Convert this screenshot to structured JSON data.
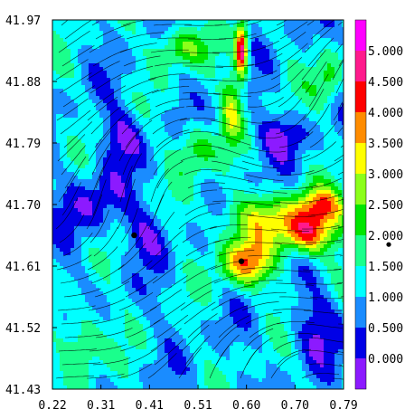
{
  "chart_data": {
    "type": "heatmap",
    "title": "",
    "xlabel": "",
    "ylabel": "",
    "overlay": "streamlines",
    "x_ticks": [
      "0.22",
      "0.31",
      "0.41",
      "0.51",
      "0.60",
      "0.70",
      "0.79"
    ],
    "y_ticks": [
      "41.43",
      "41.52",
      "41.61",
      "41.70",
      "41.79",
      "41.88",
      "41.97"
    ],
    "xlim": [
      0.22,
      0.79
    ],
    "ylim": [
      41.43,
      41.97
    ],
    "colorbar": {
      "levels": [
        {
          "label": "0.000",
          "value": 0.0,
          "color": "#8c1aff"
        },
        {
          "label": "0.500",
          "value": 0.5,
          "color": "#0000e6"
        },
        {
          "label": "1.000",
          "value": 1.0,
          "color": "#1a8cff"
        },
        {
          "label": "1.500",
          "value": 1.5,
          "color": "#00ffff"
        },
        {
          "label": "2.000",
          "value": 2.0,
          "color": "#1aff8c"
        },
        {
          "label": "2.500",
          "value": 2.5,
          "color": "#00e600"
        },
        {
          "label": "3.000",
          "value": 3.0,
          "color": "#8cff1a"
        },
        {
          "label": "3.500",
          "value": 3.5,
          "color": "#ffff00"
        },
        {
          "label": "4.000",
          "value": 4.0,
          "color": "#ff8c00"
        },
        {
          "label": "4.500",
          "value": 4.5,
          "color": "#ff0000"
        },
        {
          "label": "5.000",
          "value": 5.0,
          "color": "#ff1a8c"
        },
        {
          "label": "",
          "value": 5.5,
          "color": "#ff00ff"
        }
      ]
    },
    "markers": [
      {
        "x": 0.38,
        "y": 41.655
      },
      {
        "x": 0.59,
        "y": 41.617
      }
    ],
    "colorbar_marker": {
      "value": 2.1
    },
    "hotspots": [
      {
        "x": 0.6,
        "y": 41.615,
        "value": 4.1,
        "rx": 0.05,
        "ry": 0.035
      },
      {
        "x": 0.72,
        "y": 41.655,
        "value": 4.0,
        "rx": 0.05,
        "ry": 0.03
      },
      {
        "x": 0.59,
        "y": 41.925,
        "value": 5.2,
        "rx": 0.012,
        "ry": 0.04
      },
      {
        "x": 0.57,
        "y": 41.84,
        "value": 3.0,
        "rx": 0.02,
        "ry": 0.05
      },
      {
        "x": 0.66,
        "y": 41.68,
        "value": 3.0,
        "rx": 0.12,
        "ry": 0.035
      },
      {
        "x": 0.75,
        "y": 41.7,
        "value": 3.2,
        "rx": 0.05,
        "ry": 0.025
      },
      {
        "x": 0.47,
        "y": 41.93,
        "value": 2.8,
        "rx": 0.05,
        "ry": 0.03
      },
      {
        "x": 0.36,
        "y": 41.8,
        "value": 0.2,
        "rx": 0.04,
        "ry": 0.04
      },
      {
        "x": 0.3,
        "y": 41.7,
        "value": 0.3,
        "rx": 0.06,
        "ry": 0.05
      },
      {
        "x": 0.41,
        "y": 41.66,
        "value": 0.4,
        "rx": 0.04,
        "ry": 0.04
      },
      {
        "x": 0.67,
        "y": 41.8,
        "value": 0.3,
        "rx": 0.05,
        "ry": 0.03
      },
      {
        "x": 0.74,
        "y": 41.52,
        "value": 0.4,
        "rx": 0.05,
        "ry": 0.05
      },
      {
        "x": 0.28,
        "y": 41.5,
        "value": 2.6,
        "rx": 0.04,
        "ry": 0.05
      },
      {
        "x": 0.5,
        "y": 41.78,
        "value": 2.6,
        "rx": 0.04,
        "ry": 0.04
      },
      {
        "x": 0.76,
        "y": 41.88,
        "value": 2.5,
        "rx": 0.03,
        "ry": 0.04
      }
    ]
  }
}
